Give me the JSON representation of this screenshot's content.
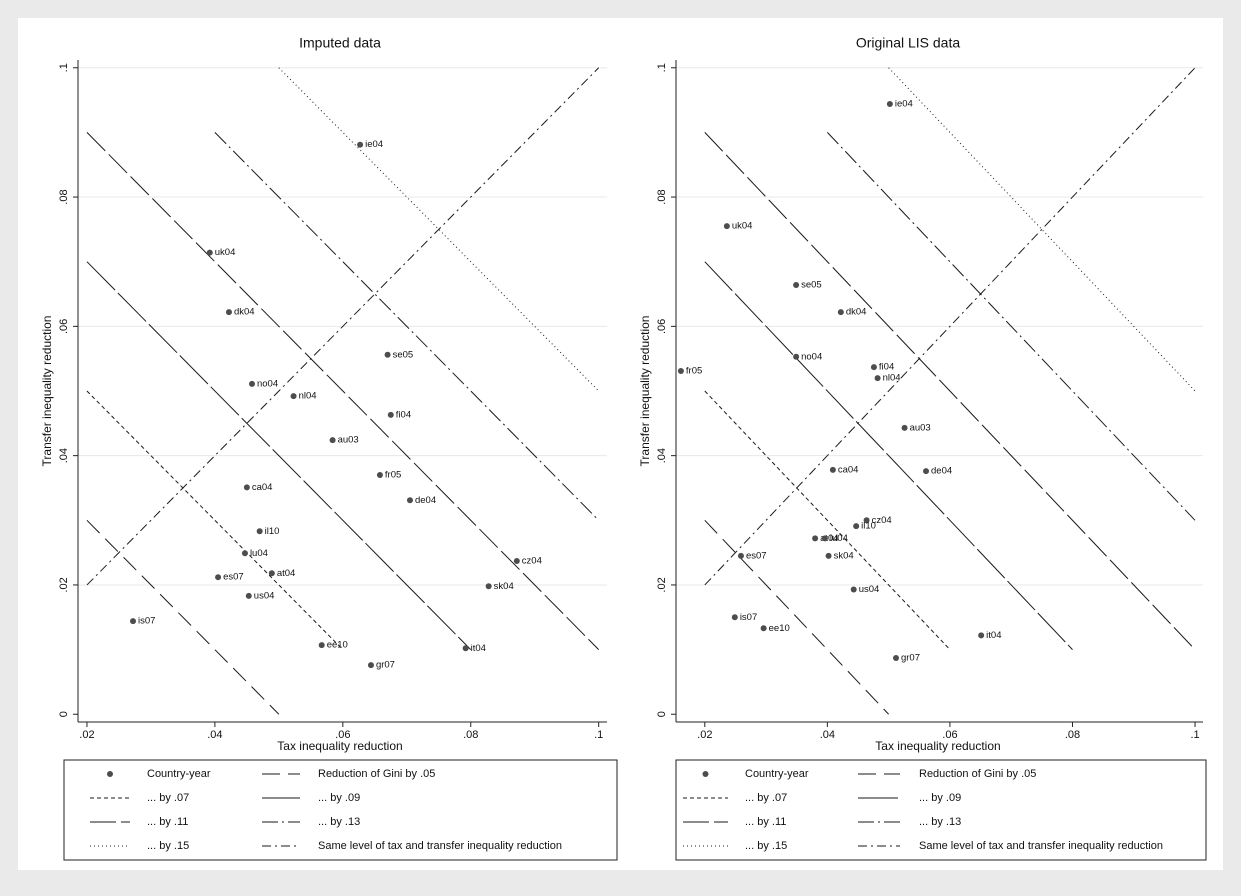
{
  "chart_data": [
    {
      "type": "scatter",
      "title": "Imputed data",
      "xlabel": "Tax inequality reduction",
      "ylabel": "Transfer inequality reduction",
      "xlim": [
        0.0186,
        0.1013
      ],
      "ylim": [
        -0.0012,
        0.1012
      ],
      "xticks": [
        {
          "value": 0.02,
          "label": ".02"
        },
        {
          "value": 0.04,
          "label": ".04"
        },
        {
          "value": 0.06,
          "label": ".06"
        },
        {
          "value": 0.08,
          "label": ".08"
        },
        {
          "value": 0.1,
          "label": ".1"
        }
      ],
      "yticks": [
        0,
        {
          "value": 0.02,
          "label": ".02"
        },
        {
          "value": 0.04,
          "label": ".04"
        },
        {
          "value": 0.06,
          "label": ".06"
        },
        {
          "value": 0.08,
          "label": ".08"
        },
        {
          "value": 0.1,
          "label": ".1"
        }
      ],
      "grid": true,
      "legend": "bottom",
      "series": [
        {
          "name": "Country-year",
          "kind": "points",
          "color": "#4d4d4d",
          "labels": [
            "ie04",
            "uk04",
            "dk04",
            "no04",
            "nl04",
            "se05",
            "fi04",
            "au03",
            "fr05",
            "de04",
            "ca04",
            "il10",
            "lu04",
            "es07",
            "at04",
            "us04",
            "cz04",
            "sk04",
            "is07",
            "ee10",
            "it04",
            "gr07"
          ],
          "x": [
            0.0627,
            0.0392,
            0.0422,
            0.0458,
            0.0523,
            0.067,
            0.0675,
            0.0584,
            0.0658,
            0.0705,
            0.045,
            0.047,
            0.0447,
            0.0405,
            0.0489,
            0.0453,
            0.0872,
            0.0828,
            0.0272,
            0.0567,
            0.0792,
            0.0644
          ],
          "y": [
            0.0881,
            0.0714,
            0.0622,
            0.0511,
            0.0492,
            0.0556,
            0.0463,
            0.0424,
            0.037,
            0.0331,
            0.0351,
            0.0283,
            0.0249,
            0.0212,
            0.0218,
            0.0183,
            0.0237,
            0.0198,
            0.0144,
            0.0107,
            0.0102,
            0.0076
          ]
        },
        {
          "name": "Reduction of Gini by .05",
          "kind": "line",
          "color": "#1a1a1a",
          "dash": "18 8",
          "x": [
            0.02,
            0.05
          ],
          "y": [
            0.03,
            0
          ]
        },
        {
          "name": "... by .07",
          "kind": "line",
          "color": "#1a1a1a",
          "dash": "4 3",
          "x": [
            0.02,
            0.06
          ],
          "y": [
            0.05,
            0.01
          ]
        },
        {
          "name": "... by .09",
          "kind": "line",
          "color": "#1a1a1a",
          "dash": "40 4",
          "x": [
            0.02,
            0.08
          ],
          "y": [
            0.07,
            0.01
          ]
        },
        {
          "name": "... by .11",
          "kind": "line",
          "color": "#1a1a1a",
          "dash": "26 5",
          "x": [
            0.02,
            0.1
          ],
          "y": [
            0.09,
            0.01
          ]
        },
        {
          "name": "... by .13",
          "kind": "line",
          "color": "#1a1a1a",
          "dash": "16 4 2 4",
          "x": [
            0.04,
            0.1
          ],
          "y": [
            0.09,
            0.03
          ]
        },
        {
          "name": "... by .15",
          "kind": "line",
          "color": "#1a1a1a",
          "dash": "1 3",
          "x": [
            0.05,
            0.1
          ],
          "y": [
            0.1,
            0.05
          ]
        },
        {
          "name": "Same level of tax and transfer inequality reduction",
          "kind": "line",
          "color": "#1a1a1a",
          "dash": "9 4 2 4",
          "x": [
            0.02,
            0.1
          ],
          "y": [
            0.02,
            0.1
          ]
        }
      ]
    },
    {
      "type": "scatter",
      "title": "Original LIS data",
      "xlabel": "Tax inequality reduction",
      "ylabel": "Transfer inequality reduction",
      "xlim": [
        0.0153,
        0.1013
      ],
      "ylim": [
        -0.0012,
        0.1012
      ],
      "xticks": [
        {
          "value": 0.02,
          "label": ".02"
        },
        {
          "value": 0.04,
          "label": ".04"
        },
        {
          "value": 0.06,
          "label": ".06"
        },
        {
          "value": 0.08,
          "label": ".08"
        },
        {
          "value": 0.1,
          "label": ".1"
        }
      ],
      "yticks": [
        0,
        {
          "value": 0.02,
          "label": ".02"
        },
        {
          "value": 0.04,
          "label": ".04"
        },
        {
          "value": 0.06,
          "label": ".06"
        },
        {
          "value": 0.08,
          "label": ".08"
        },
        {
          "value": 0.1,
          "label": ".1"
        }
      ],
      "grid": true,
      "legend": "bottom",
      "series": [
        {
          "name": "Country-year",
          "kind": "points",
          "color": "#4d4d4d",
          "labels": [
            "ie04",
            "uk04",
            "se05",
            "dk04",
            "no04",
            "fr05",
            "fi04",
            "nl04",
            "au03",
            "ca04",
            "de04",
            "cz04",
            "il10",
            "at04",
            "lu04",
            "es07",
            "sk04",
            "us04",
            "is07",
            "ee10",
            "it04",
            "gr07"
          ],
          "x": [
            0.0502,
            0.0236,
            0.0349,
            0.0422,
            0.0349,
            0.0161,
            0.0476,
            0.0482,
            0.0526,
            0.0409,
            0.0561,
            0.0464,
            0.0447,
            0.038,
            0.0396,
            0.0259,
            0.0402,
            0.0443,
            0.0249,
            0.0296,
            0.0651,
            0.0512
          ],
          "y": [
            0.0944,
            0.0755,
            0.0664,
            0.0622,
            0.0553,
            0.0531,
            0.0537,
            0.052,
            0.0443,
            0.0378,
            0.0376,
            0.03,
            0.0291,
            0.0272,
            0.0272,
            0.0245,
            0.0245,
            0.0193,
            0.015,
            0.0133,
            0.0122,
            0.0087
          ]
        },
        {
          "name": "Reduction of Gini by .05",
          "kind": "line",
          "color": "#1a1a1a",
          "dash": "18 8",
          "x": [
            0.02,
            0.05
          ],
          "y": [
            0.03,
            0
          ]
        },
        {
          "name": "... by .07",
          "kind": "line",
          "color": "#1a1a1a",
          "dash": "4 3",
          "x": [
            0.02,
            0.06
          ],
          "y": [
            0.05,
            0.01
          ]
        },
        {
          "name": "... by .09",
          "kind": "line",
          "color": "#1a1a1a",
          "dash": "40 4",
          "x": [
            0.02,
            0.08
          ],
          "y": [
            0.07,
            0.01
          ]
        },
        {
          "name": "... by .11",
          "kind": "line",
          "color": "#1a1a1a",
          "dash": "26 5",
          "x": [
            0.02,
            0.1
          ],
          "y": [
            0.09,
            0.01
          ]
        },
        {
          "name": "... by .13",
          "kind": "line",
          "color": "#1a1a1a",
          "dash": "16 4 2 4",
          "x": [
            0.04,
            0.1
          ],
          "y": [
            0.09,
            0.03
          ]
        },
        {
          "name": "... by .15",
          "kind": "line",
          "color": "#1a1a1a",
          "dash": "1 3",
          "x": [
            0.05,
            0.1
          ],
          "y": [
            0.1,
            0.05
          ]
        },
        {
          "name": "Same level of tax and transfer inequality reduction",
          "kind": "line",
          "color": "#1a1a1a",
          "dash": "9 4 2 4",
          "x": [
            0.02,
            0.1
          ],
          "y": [
            0.02,
            0.1
          ]
        }
      ]
    }
  ]
}
